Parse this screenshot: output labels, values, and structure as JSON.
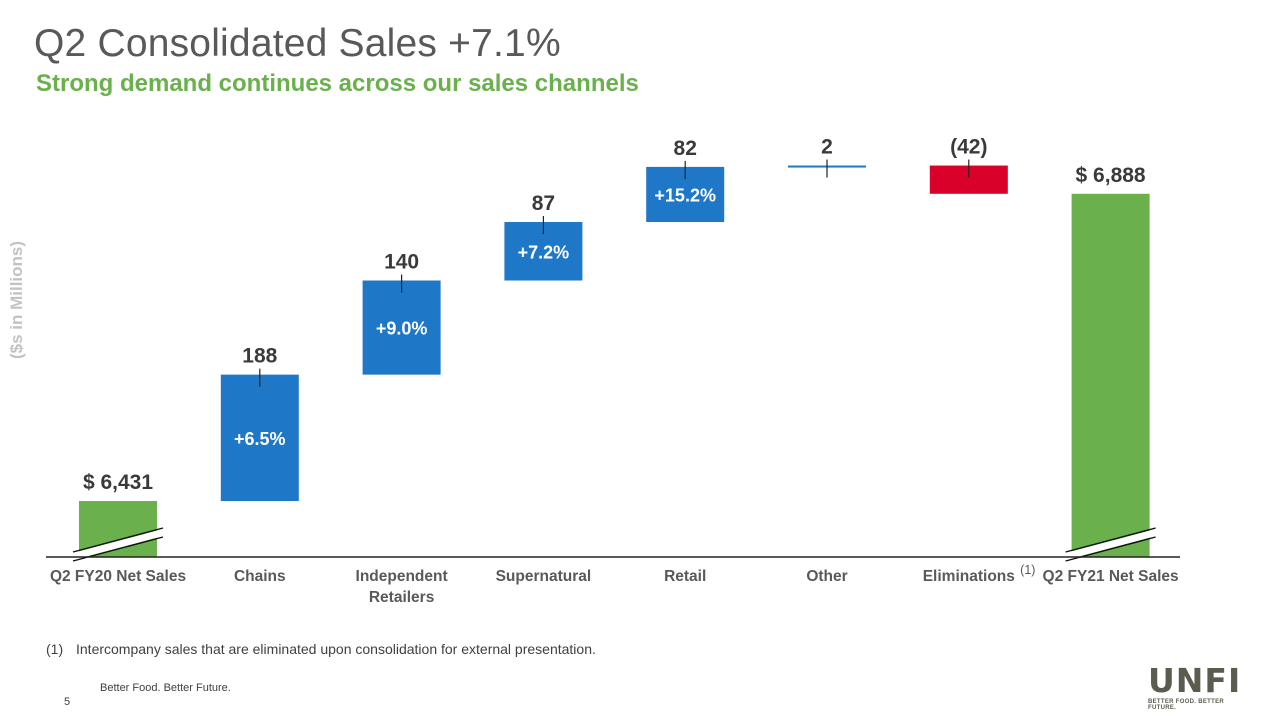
{
  "page": {
    "title": "Q2 Consolidated Sales +7.1%",
    "subtitle": "Strong demand continues across our sales channels",
    "footnote_marker": "(1)",
    "footnote_text": "Intercompany sales that are eliminated upon consolidation for external presentation.",
    "tagline": "Better Food. Better Future.",
    "page_number": "5",
    "logo_text": "UNFI",
    "logo_tagline": "BETTER FOOD. BETTER FUTURE."
  },
  "colors": {
    "total": "#6ab04c",
    "increase": "#1f77c8",
    "decrease": "#d9002a",
    "label": "#3a3a3a",
    "tick_label": "#595959",
    "axis": "#222222"
  },
  "chart_data": {
    "type": "waterfall",
    "title": "Q2 Consolidated Sales +7.1%",
    "ylabel": "($s in Millions)",
    "axis_break": true,
    "categories": [
      "Q2 FY20 Net Sales",
      "Chains",
      "Independent Retailers",
      "Supernatural",
      "Retail",
      "Other",
      "Eliminations",
      "Q2 FY21 Net Sales"
    ],
    "category_lines": [
      [
        "Q2 FY20 Net Sales"
      ],
      [
        "Chains"
      ],
      [
        "Independent",
        "Retailers"
      ],
      [
        "Supernatural"
      ],
      [
        "Retail"
      ],
      [
        "Other"
      ],
      [
        "Eliminations"
      ],
      [
        "Q2 FY21 Net Sales"
      ]
    ],
    "category_superscripts": [
      "",
      "",
      "",
      "",
      "",
      "",
      "(1)",
      ""
    ],
    "kinds": [
      "total",
      "increase",
      "increase",
      "increase",
      "increase",
      "increase",
      "decrease",
      "total"
    ],
    "values": [
      6431,
      188,
      140,
      87,
      82,
      2,
      -42,
      6888
    ],
    "value_labels": [
      "$ 6,431",
      "188",
      "140",
      "87",
      "82",
      "2",
      "(42)",
      "$ 6,888"
    ],
    "growth_labels": [
      "",
      "+6.5%",
      "+9.0%",
      "+7.2%",
      "+15.2%",
      "",
      "",
      ""
    ]
  }
}
